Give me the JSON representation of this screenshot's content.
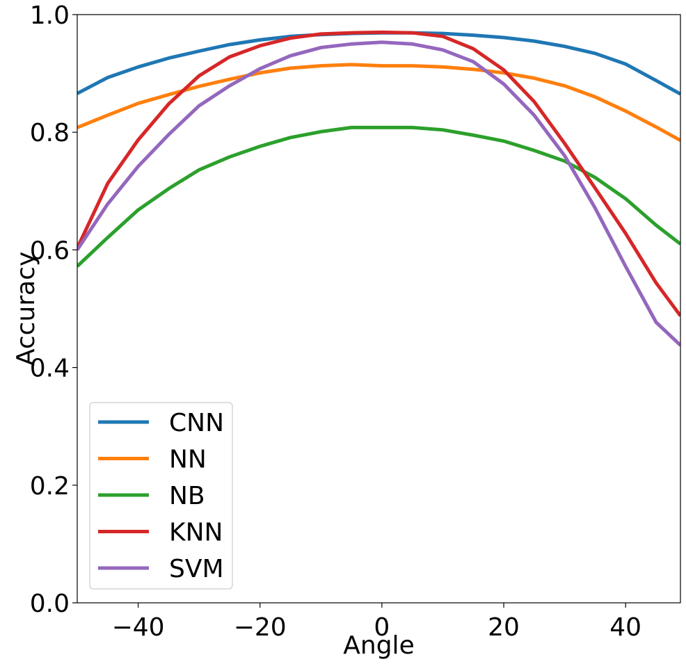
{
  "chart_data": {
    "type": "line",
    "xlabel": "Angle",
    "ylabel": "Accuracy",
    "xlim": [
      -50,
      49
    ],
    "ylim": [
      0,
      1
    ],
    "xticks": [
      -40,
      -20,
      0,
      20,
      40
    ],
    "xtick_labels": [
      "−40",
      "−20",
      "0",
      "20",
      "40"
    ],
    "yticks": [
      0,
      0.2,
      0.4,
      0.6,
      0.8,
      1.0
    ],
    "ytick_labels": [
      "0.0",
      "0.2",
      "0.4",
      "0.6",
      "0.8",
      "1.0"
    ],
    "grid": false,
    "legend_position": "lower-left",
    "x": [
      -50,
      -45,
      -40,
      -35,
      -30,
      -25,
      -20,
      -15,
      -10,
      -5,
      0,
      5,
      10,
      15,
      20,
      25,
      30,
      35,
      40,
      45,
      49
    ],
    "series": [
      {
        "name": "CNN",
        "color": "#1f77b4",
        "values": [
          0.866,
          0.893,
          0.911,
          0.926,
          0.938,
          0.949,
          0.957,
          0.963,
          0.966,
          0.968,
          0.969,
          0.969,
          0.968,
          0.965,
          0.961,
          0.955,
          0.946,
          0.934,
          0.916,
          0.888,
          0.865
        ]
      },
      {
        "name": "NN",
        "color": "#ff7f0e",
        "values": [
          0.808,
          0.829,
          0.849,
          0.864,
          0.878,
          0.89,
          0.901,
          0.909,
          0.913,
          0.915,
          0.913,
          0.913,
          0.911,
          0.907,
          0.901,
          0.892,
          0.879,
          0.86,
          0.836,
          0.809,
          0.786
        ]
      },
      {
        "name": "NB",
        "color": "#2ca02c",
        "values": [
          0.572,
          0.621,
          0.668,
          0.704,
          0.736,
          0.758,
          0.776,
          0.791,
          0.801,
          0.808,
          0.808,
          0.808,
          0.804,
          0.795,
          0.785,
          0.769,
          0.751,
          0.723,
          0.687,
          0.642,
          0.61
        ]
      },
      {
        "name": "KNN",
        "color": "#d62728",
        "values": [
          0.603,
          0.713,
          0.787,
          0.848,
          0.896,
          0.928,
          0.947,
          0.96,
          0.967,
          0.969,
          0.97,
          0.969,
          0.963,
          0.942,
          0.906,
          0.852,
          0.781,
          0.705,
          0.628,
          0.544,
          0.488
        ]
      },
      {
        "name": "SVM",
        "color": "#9467bd",
        "values": [
          0.6,
          0.678,
          0.742,
          0.796,
          0.845,
          0.879,
          0.908,
          0.93,
          0.944,
          0.95,
          0.953,
          0.95,
          0.94,
          0.92,
          0.882,
          0.829,
          0.76,
          0.671,
          0.572,
          0.477,
          0.438
        ]
      }
    ]
  }
}
